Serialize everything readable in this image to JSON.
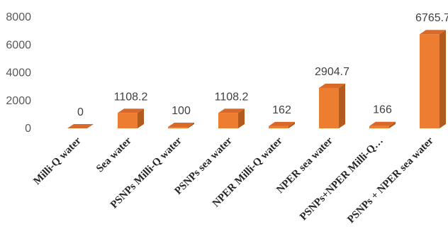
{
  "chart_data": {
    "type": "bar",
    "style": "3d-column",
    "categories": [
      "Milli-Q water",
      "Sea water",
      "PSNPs Milli-Q water",
      "PSNPs sea water",
      "NPER Milli-Q water",
      "NPER sea water",
      "PSNPs+NPER Milli-Q…",
      "PSNPs + NPER sea water"
    ],
    "values": [
      0,
      1108.2,
      100,
      1108.2,
      162,
      2904.7,
      166,
      6765.7
    ],
    "data_labels": [
      "0",
      "1108.2",
      "100",
      "1108.2",
      "162",
      "2904.7",
      "166",
      "6765.7"
    ],
    "yticks": [
      "0",
      "2000",
      "4000",
      "6000",
      "8000"
    ],
    "ylim": [
      0,
      8000
    ],
    "grid": false,
    "legend": "none",
    "colors": {
      "front": "#ED7D31",
      "side": "#B35A1E",
      "top": "#D9692A"
    }
  }
}
